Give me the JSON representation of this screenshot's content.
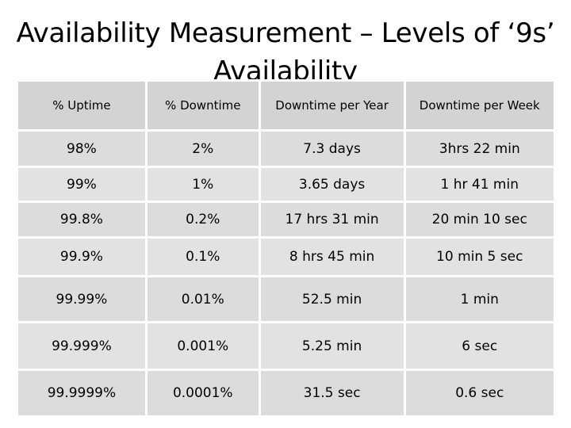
{
  "slide": {
    "title": "Availability Measurement – Levels of ‘9s’ Availability"
  },
  "table": {
    "headers": [
      "% Uptime",
      "% Downtime",
      "Downtime per Year",
      "Downtime per Week"
    ],
    "rows": [
      [
        "98%",
        "2%",
        "7.3 days",
        "3hrs 22 min"
      ],
      [
        "99%",
        "1%",
        "3.65 days",
        "1 hr 41 min"
      ],
      [
        "99.8%",
        "0.2%",
        "17 hrs 31 min",
        "20 min 10 sec"
      ],
      [
        "99.9%",
        "0.1%",
        "8 hrs 45 min",
        "10 min 5 sec"
      ],
      [
        "99.99%",
        "0.01%",
        "52.5 min",
        "1 min"
      ],
      [
        "99.999%",
        "0.001%",
        "5.25 min",
        "6 sec"
      ],
      [
        "99.9999%",
        "0.0001%",
        "31.5 sec",
        "0.6 sec"
      ]
    ]
  }
}
